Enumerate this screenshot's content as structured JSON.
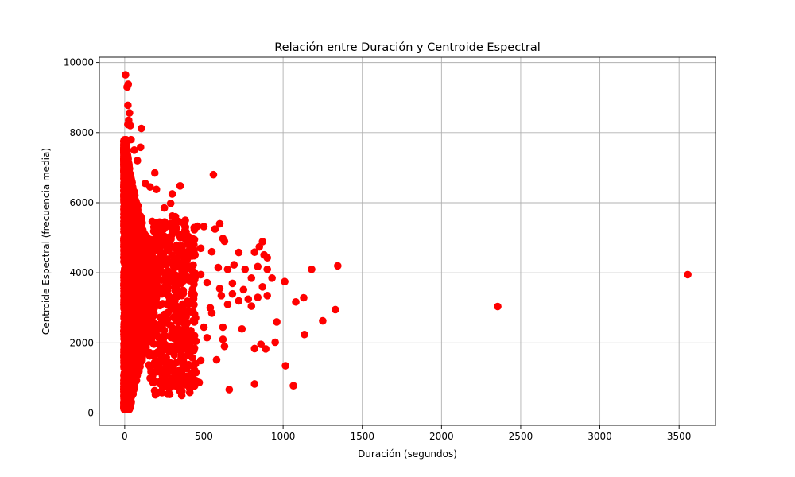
{
  "chart_data": {
    "type": "scatter",
    "title": "Relación entre Duración y Centroide Espectral",
    "xlabel": "Duración (segundos)",
    "ylabel": "Centroide Espectral (frecuencia media)",
    "xlim": [
      -160,
      3730
    ],
    "ylim": [
      -350,
      10150
    ],
    "x_ticks": [
      0,
      500,
      1000,
      1500,
      2000,
      2500,
      3000,
      3500
    ],
    "y_ticks": [
      0,
      2000,
      4000,
      6000,
      8000,
      10000
    ],
    "grid": true,
    "marker_color": "#ff0000",
    "series": [
      {
        "points": [
          [
            5,
            9650
          ],
          [
            22,
            9380
          ],
          [
            15,
            9300
          ],
          [
            20,
            8780
          ],
          [
            30,
            8560
          ],
          [
            25,
            8350
          ],
          [
            35,
            8200
          ],
          [
            105,
            8120
          ],
          [
            20,
            8230
          ],
          [
            100,
            7580
          ],
          [
            40,
            7800
          ],
          [
            60,
            7500
          ],
          [
            80,
            7200
          ],
          [
            190,
            6850
          ],
          [
            560,
            6800
          ],
          [
            130,
            6550
          ],
          [
            160,
            6450
          ],
          [
            350,
            6480
          ],
          [
            200,
            6380
          ],
          [
            300,
            6250
          ],
          [
            290,
            5980
          ],
          [
            300,
            5620
          ],
          [
            600,
            5400
          ],
          [
            570,
            5250
          ],
          [
            460,
            5330
          ],
          [
            500,
            5320
          ],
          [
            380,
            5330
          ],
          [
            440,
            5230
          ],
          [
            220,
            5450
          ],
          [
            620,
            4980
          ],
          [
            630,
            4900
          ],
          [
            550,
            4600
          ],
          [
            480,
            4700
          ],
          [
            870,
            4890
          ],
          [
            850,
            4740
          ],
          [
            820,
            4590
          ],
          [
            720,
            4580
          ],
          [
            900,
            4430
          ],
          [
            880,
            4510
          ],
          [
            1345,
            4200
          ],
          [
            1180,
            4100
          ],
          [
            690,
            4230
          ],
          [
            760,
            4100
          ],
          [
            650,
            4100
          ],
          [
            840,
            4180
          ],
          [
            900,
            4100
          ],
          [
            930,
            3850
          ],
          [
            1010,
            3750
          ],
          [
            870,
            3600
          ],
          [
            800,
            3850
          ],
          [
            680,
            3700
          ],
          [
            750,
            3520
          ],
          [
            680,
            3400
          ],
          [
            840,
            3300
          ],
          [
            900,
            3350
          ],
          [
            780,
            3250
          ],
          [
            800,
            3050
          ],
          [
            1130,
            3290
          ],
          [
            1080,
            3170
          ],
          [
            720,
            3200
          ],
          [
            650,
            3100
          ],
          [
            1330,
            2950
          ],
          [
            1250,
            2630
          ],
          [
            960,
            2600
          ],
          [
            740,
            2400
          ],
          [
            620,
            2450
          ],
          [
            1135,
            2240
          ],
          [
            950,
            2020
          ],
          [
            860,
            1960
          ],
          [
            890,
            1830
          ],
          [
            820,
            1840
          ],
          [
            620,
            2100
          ],
          [
            630,
            1900
          ],
          [
            580,
            1520
          ],
          [
            1015,
            1350
          ],
          [
            820,
            830
          ],
          [
            660,
            670
          ],
          [
            1065,
            780
          ],
          [
            470,
            870
          ],
          [
            360,
            500
          ],
          [
            280,
            700
          ],
          [
            240,
            720
          ],
          [
            2355,
            3040
          ],
          [
            3555,
            3950
          ],
          [
            480,
            3950
          ],
          [
            520,
            3720
          ],
          [
            600,
            3550
          ],
          [
            550,
            2850
          ],
          [
            430,
            2900
          ],
          [
            500,
            2450
          ],
          [
            450,
            2050
          ],
          [
            400,
            1650
          ],
          [
            350,
            1200
          ],
          [
            300,
            900
          ],
          [
            260,
            1300
          ],
          [
            480,
            1500
          ],
          [
            520,
            2150
          ],
          [
            400,
            4500
          ],
          [
            440,
            4950
          ],
          [
            360,
            5050
          ],
          [
            320,
            5600
          ],
          [
            250,
            5850
          ],
          [
            280,
            4800
          ],
          [
            540,
            3000
          ],
          [
            590,
            4150
          ],
          [
            610,
            3350
          ]
        ]
      }
    ]
  }
}
